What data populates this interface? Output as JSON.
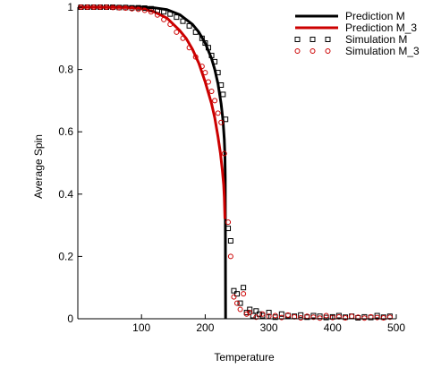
{
  "chart_data": {
    "type": "line",
    "xlabel": "Temperature",
    "ylabel": "Average Spin",
    "xlim": [
      0,
      500
    ],
    "ylim": [
      0,
      1
    ],
    "x_ticks": [
      100,
      200,
      300,
      400,
      500
    ],
    "y_ticks": [
      0,
      0.2,
      0.4,
      0.6,
      0.8,
      1
    ],
    "x_tick_labels": [
      "100",
      "200",
      "300",
      "400",
      "500"
    ],
    "y_tick_labels": [
      "0",
      "0.2",
      "0.4",
      "0.6",
      "0.8",
      "1"
    ],
    "grid": false,
    "legend_position": "top-right",
    "legend": [
      "Prediction M",
      "Prediction M_3",
      "Simulation M",
      "Simulation M_3"
    ],
    "series": [
      {
        "name": "Prediction M",
        "kind": "line",
        "color": "#000000",
        "x": [
          0,
          100,
          120,
          140,
          160,
          180,
          190,
          200,
          210,
          215,
          220,
          225,
          228,
          230,
          231,
          231.5,
          232
        ],
        "y": [
          1.0,
          1.0,
          0.998,
          0.992,
          0.976,
          0.945,
          0.92,
          0.885,
          0.835,
          0.8,
          0.755,
          0.69,
          0.635,
          0.575,
          0.52,
          0.45,
          0.0
        ]
      },
      {
        "name": "Prediction M_3",
        "kind": "line",
        "color": "#cc0000",
        "x": [
          0,
          80,
          100,
          120,
          140,
          160,
          170,
          180,
          190,
          200,
          210,
          215,
          220,
          224,
          227,
          229,
          230,
          231
        ],
        "y": [
          1.0,
          0.999,
          0.996,
          0.985,
          0.965,
          0.925,
          0.9,
          0.865,
          0.82,
          0.76,
          0.69,
          0.645,
          0.585,
          0.53,
          0.475,
          0.43,
          0.39,
          0.32
        ]
      },
      {
        "name": "Simulation M",
        "kind": "scatter",
        "marker": "square",
        "color": "#000000",
        "x": [
          5,
          15,
          25,
          35,
          45,
          55,
          65,
          75,
          85,
          95,
          105,
          115,
          125,
          135,
          145,
          155,
          165,
          175,
          185,
          195,
          200,
          205,
          210,
          215,
          220,
          225,
          228,
          232,
          236,
          240,
          245,
          250,
          255,
          260,
          265,
          270,
          275,
          280,
          285,
          290,
          300,
          310,
          320,
          330,
          340,
          350,
          360,
          370,
          380,
          390,
          400,
          410,
          420,
          430,
          440,
          450,
          460,
          470,
          480,
          490
        ],
        "y": [
          1.0,
          1.0,
          1.0,
          1.0,
          1.0,
          1.0,
          0.999,
          0.999,
          0.998,
          0.998,
          0.997,
          0.995,
          0.99,
          0.985,
          0.978,
          0.968,
          0.955,
          0.94,
          0.92,
          0.9,
          0.885,
          0.87,
          0.845,
          0.825,
          0.79,
          0.75,
          0.72,
          0.64,
          0.29,
          0.25,
          0.09,
          0.08,
          0.05,
          0.1,
          0.02,
          0.03,
          0.01,
          0.025,
          0.015,
          0.01,
          0.02,
          0.005,
          0.015,
          0.01,
          0.008,
          0.012,
          0.005,
          0.01,
          0.008,
          0.004,
          0.006,
          0.01,
          0.005,
          0.008,
          0.003,
          0.006,
          0.004,
          0.01,
          0.005,
          0.008
        ]
      },
      {
        "name": "Simulation M_3",
        "kind": "scatter",
        "marker": "circle",
        "color": "#cc0000",
        "x": [
          5,
          15,
          25,
          35,
          45,
          55,
          65,
          75,
          85,
          95,
          105,
          115,
          125,
          135,
          145,
          155,
          165,
          175,
          185,
          195,
          200,
          205,
          210,
          215,
          220,
          225,
          230,
          236,
          240,
          245,
          250,
          255,
          260,
          265,
          270,
          280,
          290,
          300,
          310,
          320,
          330,
          340,
          350,
          360,
          370,
          380,
          390,
          400,
          410,
          420,
          430,
          440,
          450,
          460,
          470,
          480,
          490
        ],
        "y": [
          1.0,
          1.0,
          1.0,
          1.0,
          1.0,
          0.999,
          0.998,
          0.997,
          0.995,
          0.993,
          0.99,
          0.985,
          0.975,
          0.96,
          0.945,
          0.92,
          0.9,
          0.87,
          0.84,
          0.81,
          0.79,
          0.76,
          0.73,
          0.7,
          0.66,
          0.63,
          0.53,
          0.31,
          0.2,
          0.07,
          0.05,
          0.03,
          0.08,
          0.015,
          0.02,
          0.005,
          0.015,
          0.008,
          0.01,
          0.004,
          0.012,
          0.006,
          0.003,
          0.008,
          0.005,
          0.002,
          0.01,
          0.004,
          0.006,
          0.003,
          0.008,
          0.005,
          0.002,
          0.006,
          0.004,
          0.003,
          0.005
        ]
      }
    ]
  }
}
